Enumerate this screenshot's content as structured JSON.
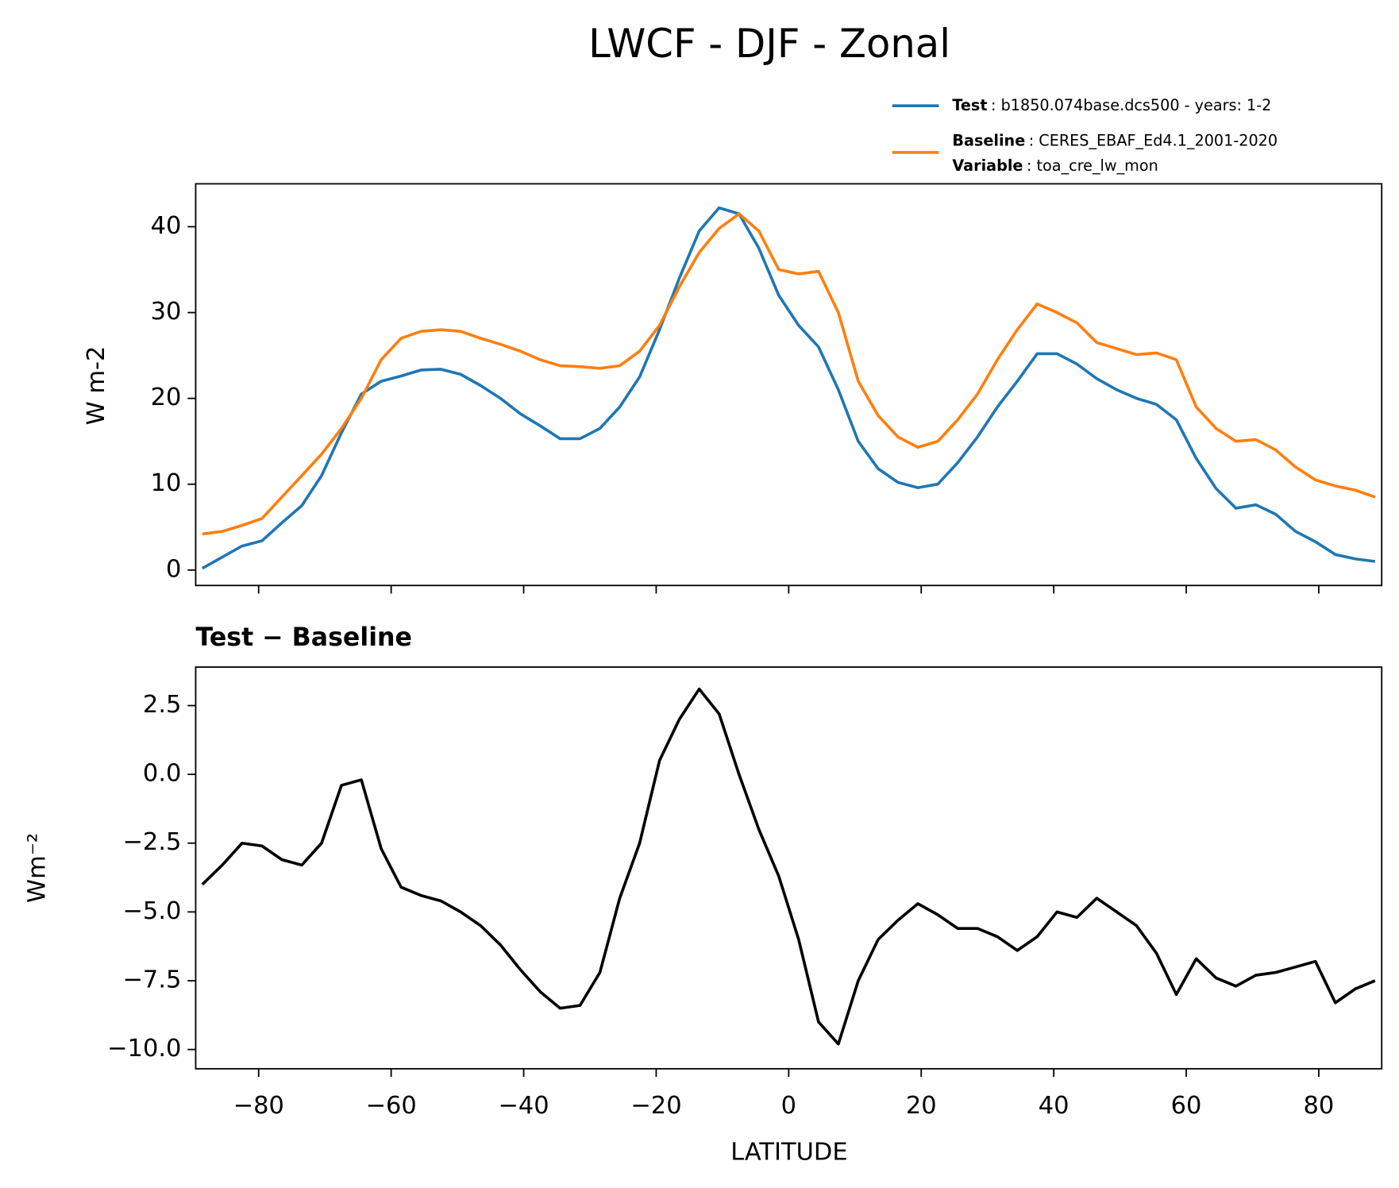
{
  "chart_data": [
    {
      "type": "line",
      "title": "LWCF - DJF - Zonal",
      "ylabel": "W m-2",
      "x": [
        -88.5,
        -85.5,
        -82.5,
        -79.5,
        -76.5,
        -73.5,
        -70.5,
        -67.5,
        -64.5,
        -61.5,
        -58.5,
        -55.5,
        -52.5,
        -49.5,
        -46.5,
        -43.5,
        -40.5,
        -37.5,
        -34.5,
        -31.5,
        -28.5,
        -25.5,
        -22.5,
        -19.5,
        -16.5,
        -13.5,
        -10.5,
        -7.5,
        -4.5,
        -1.5,
        1.5,
        4.5,
        7.5,
        10.5,
        13.5,
        16.5,
        19.5,
        22.5,
        25.5,
        28.5,
        31.5,
        34.5,
        37.5,
        40.5,
        43.5,
        46.5,
        49.5,
        52.5,
        55.5,
        58.5,
        61.5,
        64.5,
        67.5,
        70.5,
        73.5,
        76.5,
        79.5,
        82.5,
        85.5,
        88.5
      ],
      "series": [
        {
          "name": "Test",
          "description": ": b1850.074base.dcs500 - years: 1-2",
          "color": "#1f77b4",
          "values": [
            0.2,
            1.5,
            2.8,
            3.4,
            5.5,
            7.5,
            11,
            16,
            20.5,
            22,
            22.6,
            23.3,
            23.4,
            22.8,
            21.5,
            20,
            18.2,
            16.8,
            15.3,
            15.3,
            16.5,
            19,
            22.5,
            28,
            34,
            39.5,
            42.2,
            41.5,
            37.5,
            32,
            28.5,
            26,
            21,
            15,
            11.8,
            10.2,
            9.6,
            10,
            12.5,
            15.5,
            19,
            22,
            25.2,
            25.2,
            24,
            22.3,
            21,
            20,
            19.3,
            17.5,
            13,
            9.5,
            7.2,
            7.6,
            6.5,
            4.5,
            3.3,
            1.8,
            1.3,
            1.0
          ]
        },
        {
          "name": "Baseline",
          "description": ": CERES_EBAF_Ed4.1_2001-2020",
          "color": "#ff7f0e",
          "values": [
            4.2,
            4.5,
            5.2,
            6,
            8.5,
            11,
            13.5,
            16.5,
            20,
            24.5,
            27,
            27.8,
            28,
            27.8,
            27,
            26.3,
            25.5,
            24.5,
            23.8,
            23.7,
            23.5,
            23.8,
            25.5,
            28.5,
            33,
            37,
            39.8,
            41.5,
            39.5,
            35,
            34.5,
            34.8,
            30,
            22,
            18,
            15.5,
            14.3,
            15,
            17.5,
            20.5,
            24.5,
            28,
            31,
            30,
            28.8,
            26.5,
            25.8,
            25.1,
            25.3,
            24.5,
            19,
            16.5,
            15,
            15.2,
            14,
            12,
            10.5,
            9.8,
            9.3,
            8.5
          ]
        }
      ],
      "legend_extra": {
        "name": "Variable",
        "description": ": toa_cre_lw_mon"
      },
      "xlim": [
        -89.5,
        89.5
      ],
      "xticks": [
        -80,
        -60,
        -40,
        -20,
        0,
        20,
        40,
        60,
        80
      ],
      "ylim": [
        -1.8,
        45
      ],
      "yticks": [
        0,
        10,
        20,
        30,
        40
      ]
    },
    {
      "type": "line",
      "title": "Test − Baseline",
      "ylabel": "Wm⁻²",
      "xlabel": "LATITUDE",
      "x": [
        -88.5,
        -85.5,
        -82.5,
        -79.5,
        -76.5,
        -73.5,
        -70.5,
        -67.5,
        -64.5,
        -61.5,
        -58.5,
        -55.5,
        -52.5,
        -49.5,
        -46.5,
        -43.5,
        -40.5,
        -37.5,
        -34.5,
        -31.5,
        -28.5,
        -25.5,
        -22.5,
        -19.5,
        -16.5,
        -13.5,
        -10.5,
        -7.5,
        -4.5,
        -1.5,
        1.5,
        4.5,
        7.5,
        10.5,
        13.5,
        16.5,
        19.5,
        22.5,
        25.5,
        28.5,
        31.5,
        34.5,
        37.5,
        40.5,
        43.5,
        46.5,
        49.5,
        52.5,
        55.5,
        58.5,
        61.5,
        64.5,
        67.5,
        70.5,
        73.5,
        76.5,
        79.5,
        82.5,
        85.5,
        88.5
      ],
      "series": [
        {
          "color": "#000000",
          "values": [
            -4,
            -3.3,
            -2.5,
            -2.6,
            -3.1,
            -3.3,
            -2.5,
            -0.4,
            -0.2,
            -2.7,
            -4.1,
            -4.4,
            -4.6,
            -5,
            -5.5,
            -6.2,
            -7.1,
            -7.9,
            -8.5,
            -8.4,
            -7.2,
            -4.5,
            -2.5,
            0.5,
            2,
            3.1,
            2.2,
            0,
            -2,
            -3.7,
            -6,
            -9,
            -9.8,
            -7.5,
            -6,
            -5.3,
            -4.7,
            -5.1,
            -5.6,
            -5.6,
            -5.9,
            -6.4,
            -5.9,
            -5,
            -5.2,
            -4.5,
            -5,
            -5.5,
            -6.5,
            -8,
            -6.7,
            -7.4,
            -7.7,
            -7.3,
            -7.2,
            -7,
            -6.8,
            -8.3,
            -7.8,
            -7.5
          ]
        }
      ],
      "xlim": [
        -89.5,
        89.5
      ],
      "xticks": [
        {
          "value": -80,
          "label": "−80"
        },
        {
          "value": -60,
          "label": "−60"
        },
        {
          "value": -40,
          "label": "−40"
        },
        {
          "value": -20,
          "label": "−20"
        },
        0,
        20,
        40,
        60,
        80
      ],
      "ylim": [
        -10.7,
        3.9
      ],
      "yticks": [
        {
          "value": -10,
          "label": "−10.0"
        },
        {
          "value": -7.5,
          "label": "−7.5"
        },
        {
          "value": -5,
          "label": "−5.0"
        },
        {
          "value": -2.5,
          "label": "−2.5"
        },
        {
          "value": 0,
          "label": "0.0"
        },
        2.5
      ]
    }
  ]
}
